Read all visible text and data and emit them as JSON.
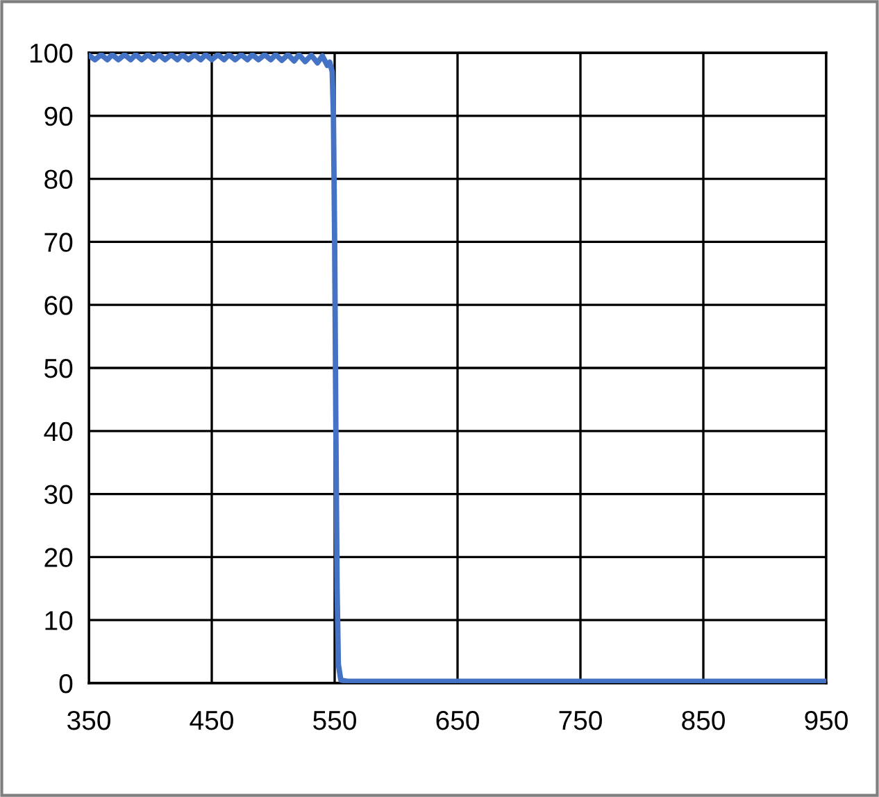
{
  "chart_data": {
    "type": "line",
    "x": [
      350,
      355,
      360,
      365,
      369,
      374,
      379,
      384,
      388,
      393,
      398,
      403,
      407,
      412,
      417,
      422,
      426,
      431,
      436,
      441,
      445,
      450,
      455,
      460,
      464,
      469,
      474,
      479,
      483,
      488,
      493,
      498,
      502,
      507,
      512,
      517,
      521,
      526,
      531,
      536,
      540,
      544,
      546,
      548,
      549,
      550,
      551,
      552,
      553,
      555,
      560,
      950
    ],
    "series": [
      {
        "color": "#4472c4",
        "values": [
          99.6,
          98.9,
          99.7,
          98.9,
          99.7,
          98.9,
          99.7,
          98.9,
          99.7,
          98.9,
          99.7,
          98.9,
          99.7,
          98.9,
          99.7,
          98.9,
          99.7,
          98.9,
          99.7,
          98.9,
          99.7,
          98.9,
          99.7,
          98.9,
          99.7,
          98.9,
          99.7,
          98.9,
          99.7,
          98.9,
          99.7,
          98.9,
          99.7,
          98.8,
          99.7,
          98.7,
          99.7,
          98.6,
          99.6,
          98.4,
          99.5,
          98.0,
          98.5,
          97,
          90,
          70,
          40,
          15,
          3,
          0.5,
          0.3,
          0.3
        ]
      }
    ],
    "xlim": [
      350,
      950
    ],
    "xticks": [
      350,
      450,
      550,
      650,
      750,
      850,
      950
    ],
    "ylim": [
      0,
      100
    ],
    "yticks": [
      0,
      10,
      20,
      30,
      40,
      50,
      60,
      70,
      80,
      90,
      100
    ],
    "grid": true,
    "marker": "none",
    "line_style": "solid"
  }
}
